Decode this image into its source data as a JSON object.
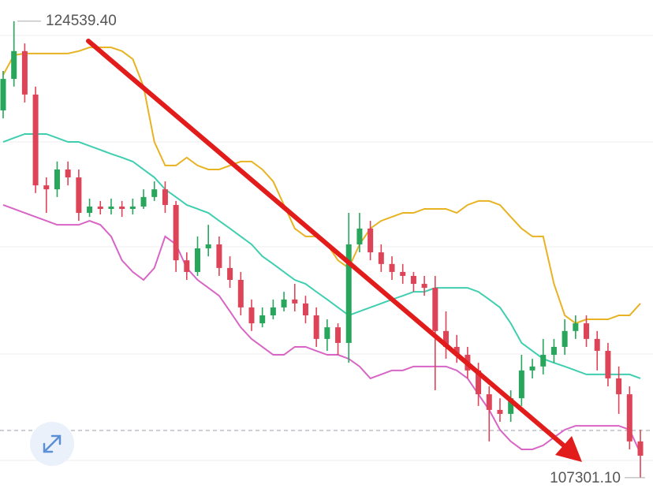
{
  "chart_data": {
    "type": "candlestick",
    "ylim": [
      106880,
      125340
    ],
    "up_color": "#27a65c",
    "down_color": "#de4457",
    "max_label": {
      "value": 124539.4,
      "label": "124539.40"
    },
    "min_label": {
      "value": 107301.1,
      "label": "107301.10"
    },
    "candles": {
      "open": [
        121170,
        122360,
        123410,
        121770,
        118340,
        118190,
        118940,
        118640,
        117300,
        117540,
        117450,
        117540,
        117450,
        117540,
        117900,
        118190,
        117600,
        115510,
        115070,
        115960,
        116110,
        115220,
        114770,
        113730,
        113130,
        113430,
        113730,
        114030,
        113880,
        113430,
        112540,
        112980,
        112390,
        116110,
        116710,
        115810,
        115370,
        115070,
        114920,
        114620,
        114470,
        112840,
        112240,
        111940,
        111350,
        110450,
        109860,
        109710,
        110300,
        111350,
        111500,
        111940,
        112240,
        112840,
        113130,
        112540,
        112090,
        111050,
        110450,
        108670
      ],
      "high": [
        122660,
        124539.4,
        123700,
        122070,
        118640,
        119240,
        119240,
        118940,
        117840,
        117750,
        117840,
        117750,
        117840,
        118190,
        118490,
        118490,
        117750,
        115810,
        116410,
        116850,
        116410,
        115660,
        115070,
        114030,
        113730,
        114030,
        114320,
        114620,
        114170,
        113730,
        113280,
        113130,
        117300,
        117300,
        117000,
        116110,
        115660,
        115370,
        115070,
        114920,
        114920,
        113580,
        112690,
        112240,
        111640,
        110750,
        110300,
        110600,
        111940,
        111790,
        112540,
        112540,
        113280,
        113430,
        113430,
        112840,
        112390,
        111500,
        110750,
        109110
      ],
      "low": [
        120870,
        122070,
        121470,
        118050,
        117300,
        117900,
        118340,
        117000,
        117150,
        117240,
        117240,
        117150,
        117240,
        117450,
        117750,
        117300,
        115070,
        114770,
        114920,
        115660,
        114920,
        114470,
        113430,
        112840,
        112980,
        113280,
        113580,
        113580,
        113130,
        112240,
        112090,
        111940,
        111640,
        115810,
        115510,
        115070,
        114770,
        114620,
        114320,
        114170,
        110600,
        111790,
        111640,
        111050,
        110010,
        108670,
        109410,
        109410,
        110010,
        111050,
        111200,
        111640,
        111940,
        112540,
        112240,
        111350,
        110750,
        109710,
        108370,
        107301.1
      ],
      "close": [
        122360,
        123410,
        121770,
        118340,
        118190,
        118940,
        118640,
        117300,
        117540,
        117450,
        117540,
        117450,
        117540,
        117900,
        118190,
        117600,
        115510,
        115070,
        115960,
        116110,
        115220,
        114770,
        113730,
        113130,
        113430,
        113730,
        114030,
        113880,
        113430,
        112540,
        112980,
        112390,
        116110,
        116710,
        115810,
        115370,
        115070,
        114920,
        114620,
        114470,
        112840,
        112240,
        111940,
        111350,
        110450,
        109860,
        109710,
        110300,
        111350,
        111500,
        111940,
        112240,
        112840,
        113130,
        112540,
        112090,
        111050,
        110450,
        108670,
        108130
      ]
    },
    "bands": [
      {
        "color": "#e8b323",
        "values": [
          122510,
          123260,
          123320,
          123320,
          123320,
          123320,
          123320,
          123410,
          123550,
          123550,
          123550,
          123410,
          123110,
          122070,
          119980,
          119090,
          119090,
          119390,
          119090,
          118940,
          118940,
          119090,
          119240,
          119240,
          118940,
          118490,
          117600,
          116710,
          116410,
          116410,
          116110,
          115510,
          115220,
          116110,
          116710,
          117000,
          117150,
          117300,
          117300,
          117450,
          117450,
          117450,
          117300,
          117600,
          117750,
          117750,
          117600,
          117150,
          116710,
          116410,
          116410,
          114620,
          113430,
          113130,
          113280,
          113280,
          113280,
          113430,
          113430,
          113880
        ]
      },
      {
        "color": "#3fcfb0",
        "values": [
          119980,
          120130,
          120280,
          120280,
          120280,
          120130,
          119980,
          119980,
          119830,
          119680,
          119530,
          119390,
          119240,
          118940,
          118640,
          118190,
          117900,
          117600,
          117450,
          117300,
          117000,
          116710,
          116410,
          116110,
          115660,
          115370,
          115070,
          114770,
          114620,
          114320,
          114030,
          113730,
          113430,
          113580,
          113730,
          113880,
          114030,
          114170,
          114320,
          114320,
          114470,
          114470,
          114470,
          114470,
          114320,
          114030,
          113730,
          113130,
          112390,
          112090,
          111790,
          111640,
          111500,
          111350,
          111200,
          111200,
          111200,
          111200,
          111200,
          111050
        ]
      },
      {
        "color": "#d865c6",
        "values": [
          117600,
          117450,
          117300,
          117150,
          117000,
          116850,
          116850,
          116850,
          117000,
          116850,
          116410,
          115510,
          115070,
          114770,
          115220,
          116410,
          116110,
          115220,
          114770,
          114470,
          114170,
          113580,
          112980,
          112540,
          112240,
          111940,
          111940,
          112240,
          112240,
          112090,
          111940,
          111940,
          111790,
          111500,
          111050,
          111200,
          111350,
          111350,
          111500,
          111500,
          111500,
          111500,
          111350,
          111050,
          110450,
          109860,
          109110,
          108670,
          108370,
          108370,
          108520,
          108820,
          109110,
          109260,
          109260,
          109260,
          109260,
          109260,
          109110,
          108220
        ]
      }
    ]
  }
}
